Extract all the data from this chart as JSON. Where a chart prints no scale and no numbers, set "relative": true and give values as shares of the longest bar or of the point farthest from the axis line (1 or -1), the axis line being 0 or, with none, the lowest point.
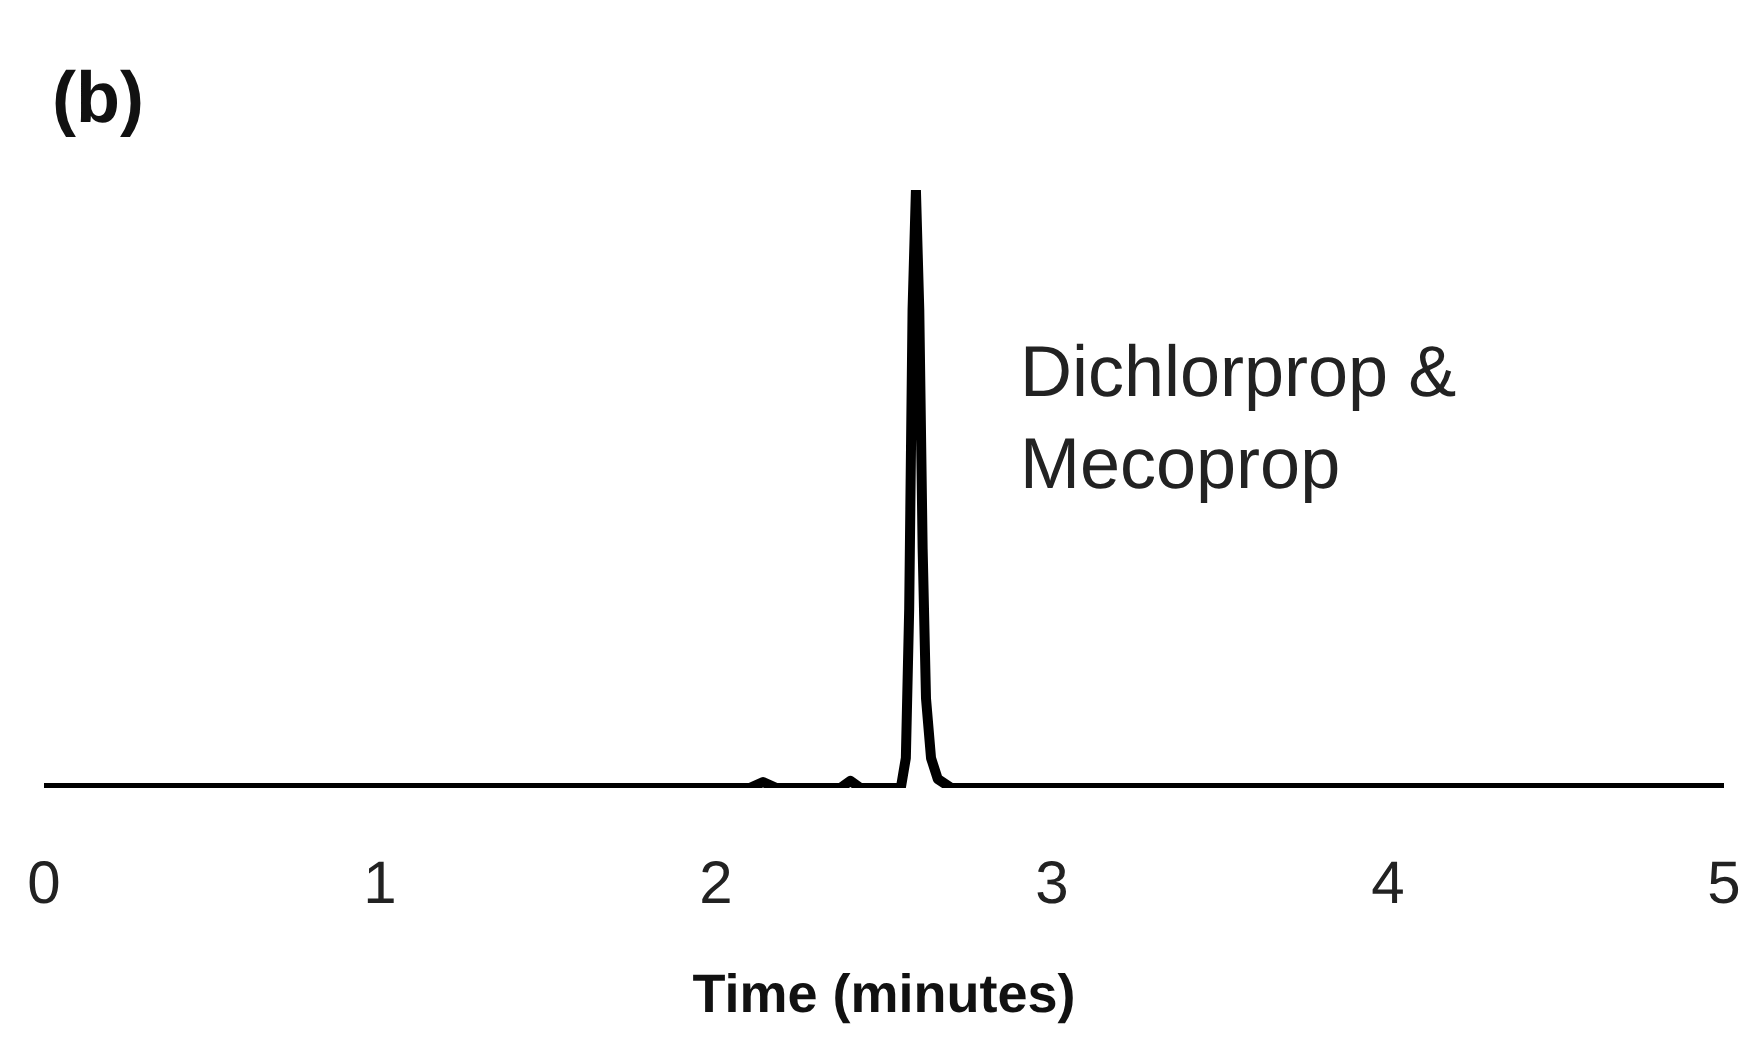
{
  "chart_data": {
    "type": "line",
    "title": "(b)",
    "xlabel": "Time (minutes)",
    "relative": true,
    "annotations": [
      "Dichlorprop & Mecoprop"
    ],
    "xlim": [
      0,
      5
    ],
    "xticks": [
      0,
      1,
      2,
      3,
      4,
      5
    ],
    "marker": "none",
    "line_style": "solid",
    "series": [
      {
        "color": "#000000",
        "x": [
          0,
          2.1,
          2.14,
          2.18,
          2.37,
          2.4,
          2.43,
          2.55,
          2.565,
          2.575,
          2.585,
          2.595,
          2.605,
          2.615,
          2.625,
          2.64,
          2.66,
          2.7,
          5
        ],
        "values": [
          0,
          0,
          0.01,
          0,
          0,
          0.012,
          0,
          0,
          0.05,
          0.3,
          0.8,
          1,
          0.8,
          0.4,
          0.15,
          0.05,
          0.015,
          0,
          0
        ]
      }
    ]
  }
}
